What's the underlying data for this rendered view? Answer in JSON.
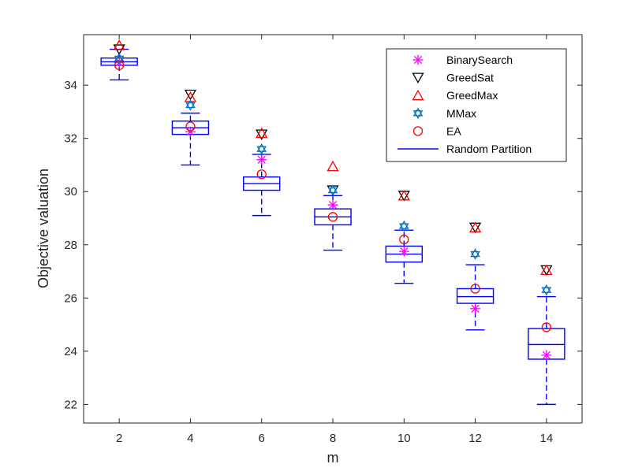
{
  "chart_data": {
    "type": "boxplot",
    "title": "",
    "xlabel": "m",
    "ylabel": "Objective valuation",
    "x_ticks": [
      2,
      4,
      6,
      8,
      10,
      12,
      14
    ],
    "y_ticks": [
      22,
      24,
      26,
      28,
      30,
      32,
      34
    ],
    "xlim": [
      1,
      15
    ],
    "ylim": [
      21.3,
      35.9
    ],
    "boxes": {
      "name": "Random Partition",
      "color": "#0000ff",
      "items": [
        {
          "x": 2,
          "whisker_low": 34.2,
          "q1": 34.75,
          "median": 34.88,
          "q3": 35.02,
          "whisker_high": 35.35
        },
        {
          "x": 4,
          "whisker_low": 31.0,
          "q1": 32.15,
          "median": 32.4,
          "q3": 32.65,
          "whisker_high": 32.95
        },
        {
          "x": 6,
          "whisker_low": 29.1,
          "q1": 30.05,
          "median": 30.3,
          "q3": 30.55,
          "whisker_high": 31.4
        },
        {
          "x": 8,
          "whisker_low": 27.8,
          "q1": 28.75,
          "median": 29.05,
          "q3": 29.35,
          "whisker_high": 29.85
        },
        {
          "x": 10,
          "whisker_low": 26.55,
          "q1": 27.35,
          "median": 27.65,
          "q3": 27.95,
          "whisker_high": 28.55
        },
        {
          "x": 12,
          "whisker_low": 24.8,
          "q1": 25.8,
          "median": 26.05,
          "q3": 26.35,
          "whisker_high": 27.25
        },
        {
          "x": 14,
          "whisker_low": 22.0,
          "q1": 23.7,
          "median": 24.25,
          "q3": 24.85,
          "whisker_high": 26.05
        }
      ]
    },
    "series": [
      {
        "name": "BinarySearch",
        "marker": "asterisk",
        "color": "#ff00ff",
        "x": [
          2,
          4,
          6,
          8,
          10,
          12,
          14
        ],
        "y": [
          34.85,
          32.25,
          31.2,
          29.5,
          27.75,
          25.6,
          23.85
        ]
      },
      {
        "name": "GreedSat",
        "marker": "triangle-down",
        "color": "#000000",
        "x": [
          2,
          4,
          6,
          8,
          10,
          12,
          14
        ],
        "y": [
          35.35,
          33.65,
          32.15,
          30.05,
          29.85,
          28.65,
          27.05
        ]
      },
      {
        "name": "GreedMax",
        "marker": "triangle-up",
        "color": "#ff0000",
        "x": [
          2,
          4,
          6,
          8,
          10,
          12,
          14
        ],
        "y": [
          35.5,
          33.55,
          32.2,
          30.95,
          29.85,
          28.65,
          27.05
        ]
      },
      {
        "name": "MMax",
        "marker": "hexagram",
        "color": "#0072bd",
        "x": [
          2,
          4,
          6,
          8,
          10,
          12,
          14
        ],
        "y": [
          35.0,
          33.25,
          31.6,
          30.05,
          28.7,
          27.65,
          26.3
        ]
      },
      {
        "name": "EA",
        "marker": "circle",
        "color": "#ff0000",
        "x": [
          2,
          4,
          6,
          8,
          10,
          12,
          14
        ],
        "y": [
          34.75,
          32.45,
          30.65,
          29.05,
          28.2,
          26.35,
          24.9
        ]
      }
    ],
    "legend": {
      "placement": "top-right",
      "entries": [
        "BinarySearch",
        "GreedSat",
        "GreedMax",
        "MMax",
        "EA",
        "Random Partition"
      ]
    },
    "grid": false
  }
}
